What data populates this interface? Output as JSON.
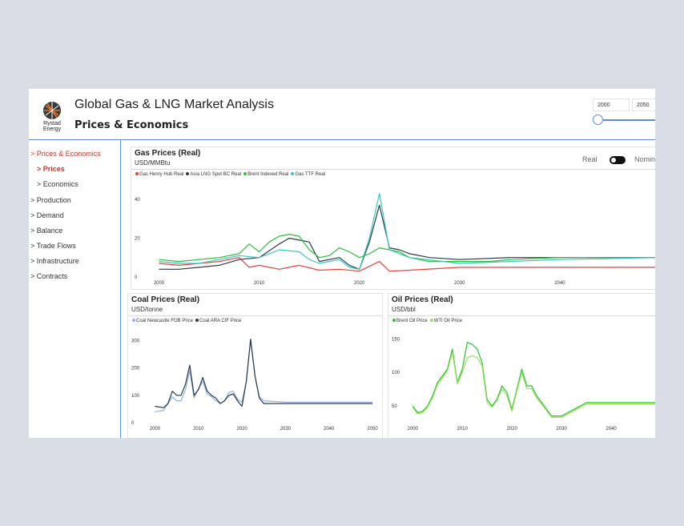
{
  "header": {
    "app_title": "Global Gas & LNG Market Analysis",
    "page_title": "Prices & Economics",
    "logo_text_1": "Rystad",
    "logo_text_2": "Energy",
    "year_start": "2000",
    "year_end": "2050"
  },
  "sidebar": {
    "items": [
      {
        "label": "> Prices & Economics",
        "active": true
      },
      {
        "label": "> Prices",
        "active": true
      },
      {
        "label": "> Economics",
        "active": false
      },
      {
        "label": "> Production",
        "active": false
      },
      {
        "label": "> Demand",
        "active": false
      },
      {
        "label": "> Balance",
        "active": false
      },
      {
        "label": "> Trade Flows",
        "active": false
      },
      {
        "label": "> Infrastructure",
        "active": false
      },
      {
        "label": "> Contracts",
        "active": false
      }
    ]
  },
  "toggle": {
    "left_label": "Real",
    "right_label": "Nominal"
  },
  "colors": {
    "accent": "#c0392b",
    "rule": "#5b8fd0"
  },
  "chart_data": [
    {
      "id": "gas",
      "type": "line",
      "title": "Gas Prices (Real)",
      "unit": "USD/MMBtu",
      "xlim": [
        1999,
        2050
      ],
      "ylim": [
        0,
        47
      ],
      "xticks": [
        2000,
        2010,
        2020,
        2030,
        2040
      ],
      "yticks": [
        0,
        20,
        40
      ],
      "series": [
        {
          "name": "Gas Henry Hub Real",
          "color": "#e2443a",
          "x": [
            2000,
            2002,
            2004,
            2006,
            2008,
            2009,
            2010,
            2012,
            2014,
            2016,
            2018,
            2020,
            2022,
            2023,
            2025,
            2030,
            2040,
            2050
          ],
          "values": [
            7,
            6,
            7,
            8,
            10,
            5,
            6,
            4,
            6,
            3.5,
            4,
            3,
            8,
            3,
            3.5,
            5,
            5,
            5
          ]
        },
        {
          "name": "Asia LNG Spot BC Real",
          "color": "#2b3a4a",
          "x": [
            2000,
            2002,
            2004,
            2006,
            2008,
            2010,
            2012,
            2013,
            2014,
            2015,
            2016,
            2018,
            2019,
            2020,
            2021,
            2022,
            2023,
            2024,
            2025,
            2027,
            2030,
            2035,
            2040,
            2050
          ],
          "values": [
            4,
            4,
            5,
            6,
            9,
            10,
            17,
            20,
            19,
            18,
            8,
            10,
            6,
            4,
            18,
            37,
            15,
            14,
            12,
            10,
            9,
            10,
            10,
            10
          ]
        },
        {
          "name": "Brent Indexed Real",
          "color": "#2bbf3a",
          "x": [
            2000,
            2002,
            2004,
            2006,
            2008,
            2009,
            2010,
            2011,
            2012,
            2013,
            2014,
            2015,
            2016,
            2017,
            2018,
            2019,
            2020,
            2021,
            2022,
            2023,
            2024,
            2025,
            2027,
            2030,
            2033,
            2035,
            2040,
            2050
          ],
          "values": [
            9,
            8,
            9,
            10,
            12,
            17,
            13,
            18,
            21,
            22,
            21,
            14,
            10,
            11,
            15,
            13,
            10,
            12,
            15,
            14,
            13,
            10,
            8,
            8,
            8,
            9,
            10,
            10
          ]
        },
        {
          "name": "Gas TTF Real",
          "color": "#3bc6c0",
          "x": [
            2000,
            2002,
            2004,
            2006,
            2008,
            2010,
            2011,
            2012,
            2014,
            2015,
            2016,
            2018,
            2019,
            2020,
            2021,
            2022,
            2023,
            2025,
            2030,
            2040,
            2050
          ],
          "values": [
            8,
            7,
            7,
            9,
            11,
            10,
            12,
            14,
            13,
            9,
            7,
            9,
            5,
            4,
            20,
            43,
            14,
            10,
            7,
            9,
            10
          ]
        }
      ]
    },
    {
      "id": "coal",
      "type": "line",
      "title": "Coal Prices (Real)",
      "unit": "USD/tonne",
      "xlim": [
        1999,
        2050
      ],
      "ylim": [
        0,
        330
      ],
      "xticks": [
        2000,
        2010,
        2020,
        2030,
        2040,
        2050
      ],
      "yticks": [
        0,
        100,
        200,
        300
      ],
      "series": [
        {
          "name": "Coal Newcastle FOB Price",
          "color": "#8fb0e8",
          "x": [
            2000,
            2002,
            2004,
            2005,
            2006,
            2007,
            2008,
            2009,
            2010,
            2011,
            2012,
            2013,
            2014,
            2015,
            2016,
            2017,
            2018,
            2019,
            2020,
            2021,
            2022,
            2023,
            2024,
            2025,
            2030,
            2040,
            2050
          ],
          "values": [
            40,
            45,
            95,
            80,
            80,
            120,
            190,
            90,
            125,
            150,
            105,
            95,
            80,
            70,
            80,
            110,
            115,
            85,
            75,
            150,
            300,
            170,
            95,
            80,
            75,
            75,
            75
          ]
        },
        {
          "name": "Coal ARA CIF Price",
          "color": "#2b3a4a",
          "x": [
            2000,
            2002,
            2003,
            2004,
            2005,
            2006,
            2007,
            2008,
            2009,
            2010,
            2011,
            2012,
            2013,
            2014,
            2015,
            2016,
            2017,
            2018,
            2019,
            2020,
            2021,
            2022,
            2023,
            2024,
            2025,
            2030,
            2040,
            2050
          ],
          "values": [
            60,
            55,
            70,
            115,
            100,
            100,
            140,
            210,
            100,
            120,
            165,
            115,
            100,
            90,
            70,
            80,
            100,
            105,
            80,
            60,
            150,
            305,
            170,
            90,
            70,
            70,
            70,
            70
          ]
        }
      ]
    },
    {
      "id": "oil",
      "type": "line",
      "title": "Oil Prices (Real)",
      "unit": "USD/bbl",
      "xlim": [
        1999,
        2050
      ],
      "ylim": [
        25,
        160
      ],
      "xticks": [
        2000,
        2010,
        2020,
        2030,
        2040
      ],
      "yticks": [
        50,
        100,
        150
      ],
      "series": [
        {
          "name": "Brent Oil Price",
          "color": "#2bbf3a",
          "x": [
            2000,
            2001,
            2002,
            2003,
            2004,
            2005,
            2006,
            2007,
            2008,
            2009,
            2010,
            2011,
            2012,
            2013,
            2014,
            2015,
            2016,
            2017,
            2018,
            2019,
            2020,
            2021,
            2022,
            2023,
            2024,
            2025,
            2027,
            2028,
            2030,
            2035,
            2040,
            2050
          ],
          "values": [
            50,
            40,
            42,
            50,
            65,
            85,
            95,
            105,
            135,
            85,
            105,
            145,
            142,
            135,
            115,
            60,
            50,
            60,
            80,
            70,
            45,
            75,
            105,
            80,
            80,
            65,
            45,
            35,
            35,
            55,
            55,
            55
          ]
        },
        {
          "name": "WTI Oil Price",
          "color": "#9be05a",
          "x": [
            2000,
            2001,
            2002,
            2003,
            2004,
            2005,
            2006,
            2007,
            2008,
            2009,
            2010,
            2011,
            2012,
            2013,
            2014,
            2015,
            2016,
            2017,
            2018,
            2019,
            2020,
            2021,
            2022,
            2023,
            2024,
            2025,
            2027,
            2028,
            2030,
            2035,
            2040,
            2050
          ],
          "values": [
            48,
            38,
            40,
            48,
            62,
            82,
            92,
            102,
            130,
            83,
            100,
            122,
            125,
            122,
            110,
            55,
            48,
            58,
            75,
            66,
            42,
            72,
            100,
            76,
            76,
            62,
            43,
            33,
            33,
            53,
            53,
            53
          ]
        }
      ]
    }
  ]
}
